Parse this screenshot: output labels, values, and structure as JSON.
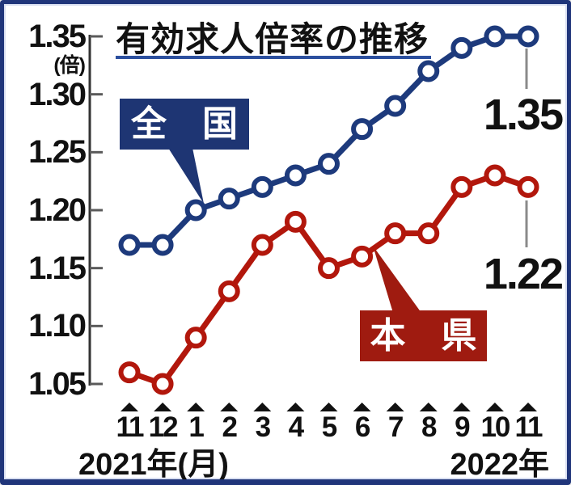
{
  "title": {
    "text": "有効求人倍率の推移"
  },
  "axis": {
    "unit_label": "(倍)",
    "y_tick_labels": [
      "1.35",
      "1.30",
      "1.25",
      "1.20",
      "1.15",
      "1.10",
      "1.05"
    ],
    "x_left_label": "2021年(月)",
    "x_right_label": "2022年"
  },
  "series_labels": {
    "national": "全　国",
    "prefecture": "本　県"
  },
  "annotations": {
    "national_last": "1.35",
    "prefecture_last": "1.22"
  },
  "colors": {
    "national_line": "#1d3a7c",
    "national_box": "#1e3573",
    "prefecture_line": "#b2170c",
    "prefecture_box": "#9f1b10",
    "axis": "#333333",
    "tick": "#5a5a5a",
    "leader": "#8a8a8a",
    "month_marker": "#111111",
    "title_underline": "#2b4f9e",
    "frame_border": "#20357a"
  },
  "chart_data": {
    "type": "line",
    "title": "有効求人倍率の推移",
    "x": [
      "11",
      "12",
      "1",
      "2",
      "3",
      "4",
      "5",
      "6",
      "7",
      "8",
      "9",
      "10",
      "11"
    ],
    "x_axis_note": "x axis runs Nov 2021 (2021年) through Nov 2022 (2022年), months labeled (月)",
    "ylabel": "(倍)",
    "ylim": [
      1.05,
      1.35
    ],
    "y_tick_step": 0.05,
    "grid": false,
    "legend_position": "callout labels on chart",
    "series": [
      {
        "name": "全国",
        "color": "#1d3a7c",
        "values": [
          1.17,
          1.17,
          1.2,
          1.21,
          1.22,
          1.23,
          1.24,
          1.27,
          1.29,
          1.32,
          1.34,
          1.35,
          1.35
        ]
      },
      {
        "name": "本県",
        "color": "#b2170c",
        "values": [
          1.06,
          1.05,
          1.09,
          1.13,
          1.17,
          1.19,
          1.15,
          1.16,
          1.18,
          1.18,
          1.22,
          1.23,
          1.22
        ]
      }
    ],
    "end_value_labels": {
      "全国": 1.35,
      "本県": 1.22
    }
  }
}
